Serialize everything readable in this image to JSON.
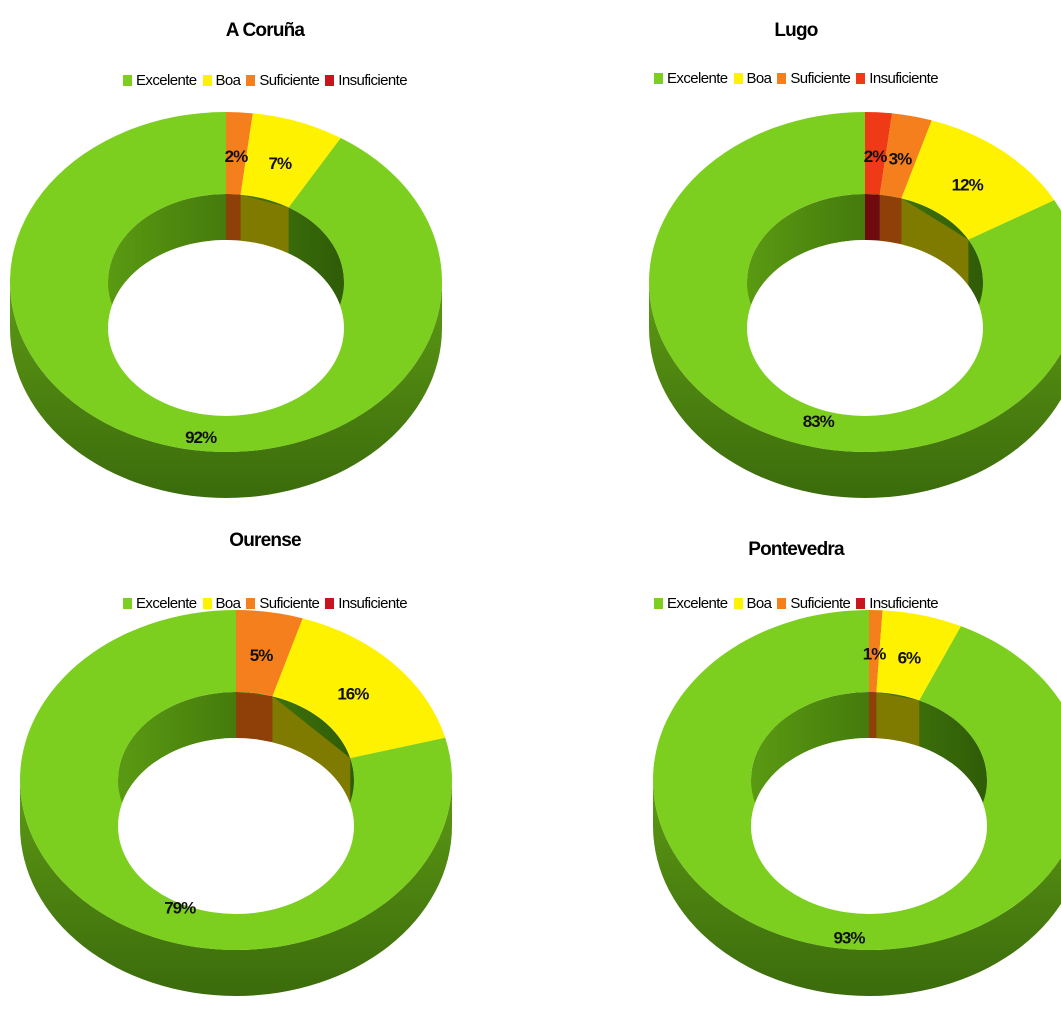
{
  "chart_data": [
    {
      "type": "pie",
      "variant": "3d-doughnut",
      "title": "A Coruña",
      "categories": [
        "Excelente",
        "Boa",
        "Suficiente",
        "Insuficiente"
      ],
      "values": [
        92,
        7,
        2,
        0
      ],
      "data_labels": [
        "92%",
        "7%",
        "2%",
        ""
      ],
      "legend": "top"
    },
    {
      "type": "pie",
      "variant": "3d-doughnut",
      "title": "Lugo",
      "categories": [
        "Excelente",
        "Boa",
        "Suficiente",
        "Insuficiente"
      ],
      "values": [
        83,
        12,
        3,
        2
      ],
      "data_labels": [
        "83%",
        "12%",
        "3%",
        "2%"
      ],
      "legend": "top"
    },
    {
      "type": "pie",
      "variant": "3d-doughnut",
      "title": "Ourense",
      "categories": [
        "Excelente",
        "Boa",
        "Suficiente",
        "Insuficiente"
      ],
      "values": [
        79,
        16,
        5,
        0
      ],
      "data_labels": [
        "79%",
        "16%",
        "5%",
        ""
      ],
      "legend": "top"
    },
    {
      "type": "pie",
      "variant": "3d-doughnut",
      "title": "Pontevedra",
      "categories": [
        "Excelente",
        "Boa",
        "Suficiente",
        "Insuficiente"
      ],
      "values": [
        93,
        6,
        1,
        0
      ],
      "data_labels": [
        "93%",
        "6%",
        "1%",
        ""
      ],
      "legend": "top"
    }
  ],
  "colors": {
    "Excelente": "#7ccf1e",
    "Boa": "#fff200",
    "Suficiente": "#f57f1c",
    "Insuficiente": "#c8141c"
  },
  "colors_dark": {
    "Excelente": "#3f6f10",
    "Boa": "#7f7a00",
    "Suficiente": "#8e4008",
    "Insuficiente": "#6f0a0e"
  },
  "colors_lugo_insuficiente": "#ee3a16"
}
